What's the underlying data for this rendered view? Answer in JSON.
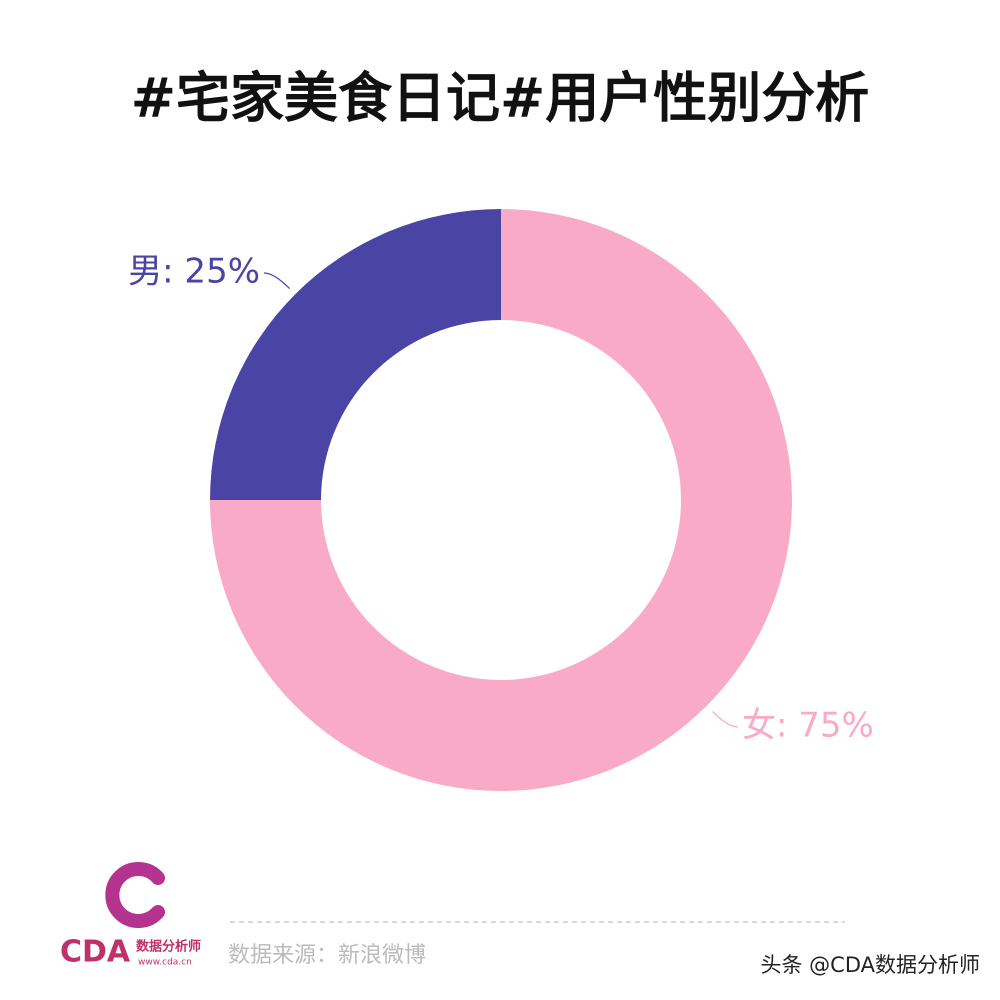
{
  "chart_data": {
    "type": "donut",
    "title": "#宅家美食日记#用户性别分析",
    "values": [
      25,
      75
    ],
    "value_labels": [
      "男: 25%",
      "女: 75%"
    ],
    "colors": [
      "#4a44a4",
      "#f9aac6"
    ]
  },
  "footer": {
    "source": "数据来源：新浪微博",
    "watermark": "头条 @CDA数据分析师",
    "logo": {
      "brand": "CDA",
      "name": "数据分析师",
      "url": "www.cda.cn"
    }
  }
}
